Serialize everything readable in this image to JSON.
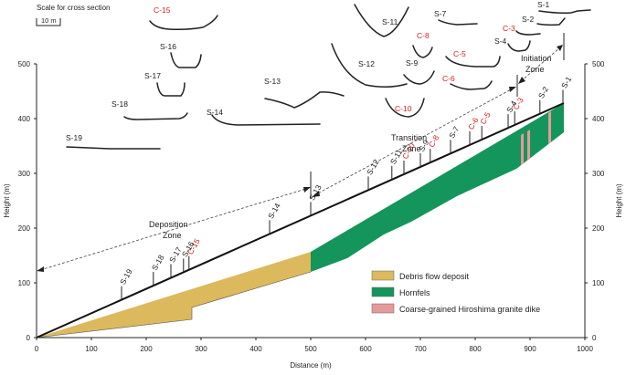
{
  "scale": {
    "label": "Scale for cross section",
    "bar_label": "10 m"
  },
  "x_axis": {
    "title": "Distance (m)",
    "ticks": [
      "0",
      "100",
      "200",
      "300",
      "400",
      "500",
      "600",
      "700",
      "800",
      "900",
      "1000"
    ]
  },
  "y_axis": {
    "title": "Height (m)",
    "ticks": [
      "0",
      "100",
      "200",
      "300",
      "400",
      "500"
    ]
  },
  "zones": {
    "initiation": [
      "Initiation",
      "Zone"
    ],
    "transition": [
      "Transition",
      "Zone"
    ],
    "deposition": [
      "Deposition",
      "Zone"
    ]
  },
  "legend": [
    {
      "label": "Debris flow deposit",
      "color": "#dcb95c"
    },
    {
      "label": "Hornfels",
      "color": "#14955b"
    },
    {
      "label": "Coarse-grained Hiroshima granite dike",
      "color": "#e59a9a"
    }
  ],
  "colors": {
    "red_label": "#d61f1f",
    "deposit": "#dcb95c",
    "hornfels": "#14955b",
    "granite": "#e59a9a"
  },
  "sections": [
    {
      "id": "S-1",
      "distance": 960,
      "red": false
    },
    {
      "id": "S-2",
      "distance": 918,
      "red": false
    },
    {
      "id": "C-3",
      "distance": 872,
      "red": true
    },
    {
      "id": "S-4",
      "distance": 860,
      "red": false
    },
    {
      "id": "C-5",
      "distance": 812,
      "red": true
    },
    {
      "id": "C-6",
      "distance": 790,
      "red": true
    },
    {
      "id": "S-7",
      "distance": 755,
      "red": false
    },
    {
      "id": "C-8",
      "distance": 718,
      "red": true
    },
    {
      "id": "S-9",
      "distance": 700,
      "red": false
    },
    {
      "id": "C-10",
      "distance": 670,
      "red": true
    },
    {
      "id": "S-11",
      "distance": 648,
      "red": false
    },
    {
      "id": "S-12",
      "distance": 605,
      "red": false
    },
    {
      "id": "S-13",
      "distance": 500,
      "red": false
    },
    {
      "id": "S-14",
      "distance": 425,
      "red": false
    },
    {
      "id": "C-15",
      "distance": 278,
      "red": true
    },
    {
      "id": "S-16",
      "distance": 268,
      "red": false
    },
    {
      "id": "S-17",
      "distance": 245,
      "red": false
    },
    {
      "id": "S-18",
      "distance": 213,
      "red": false
    },
    {
      "id": "S-19",
      "distance": 155,
      "red": false
    }
  ]
}
